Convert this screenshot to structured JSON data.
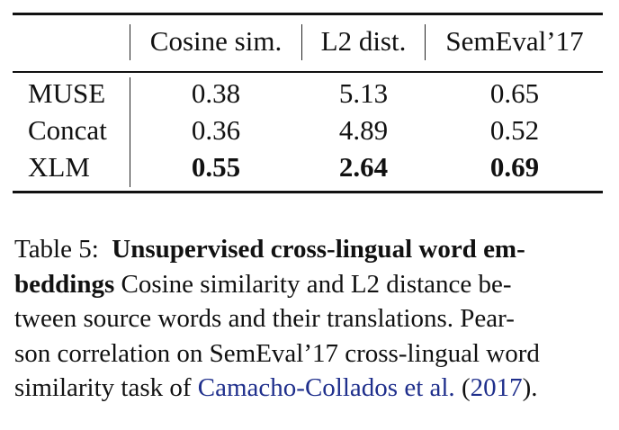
{
  "table": {
    "headers": [
      "",
      "Cosine sim.",
      "L2 dist.",
      "SemEval’17"
    ],
    "rows": [
      {
        "model": "MUSE",
        "cosine": "0.38",
        "l2": "5.13",
        "semeval": "0.65",
        "bold": false
      },
      {
        "model": "Concat",
        "cosine": "0.36",
        "l2": "4.89",
        "semeval": "0.52",
        "bold": false
      },
      {
        "model": "XLM",
        "cosine": "0.55",
        "l2": "2.64",
        "semeval": "0.69",
        "bold": true
      }
    ]
  },
  "caption": {
    "label": "Table 5:",
    "title_part1": "Unsupervised cross-lingual word em-",
    "title_part2": "beddings",
    "line2_rest": "Cosine similarity and L2 distance be-",
    "line3": "tween source words and their translations.  Pear-",
    "line4": "son correlation on SemEval’17 cross-lingual word",
    "line5_pre": "similarity task of",
    "citation_authors": "Camacho-Collados et al.",
    "citation_open": "(",
    "citation_year": "2017",
    "citation_close": ").",
    "colors": {
      "citation": "#1f2f8c"
    }
  }
}
